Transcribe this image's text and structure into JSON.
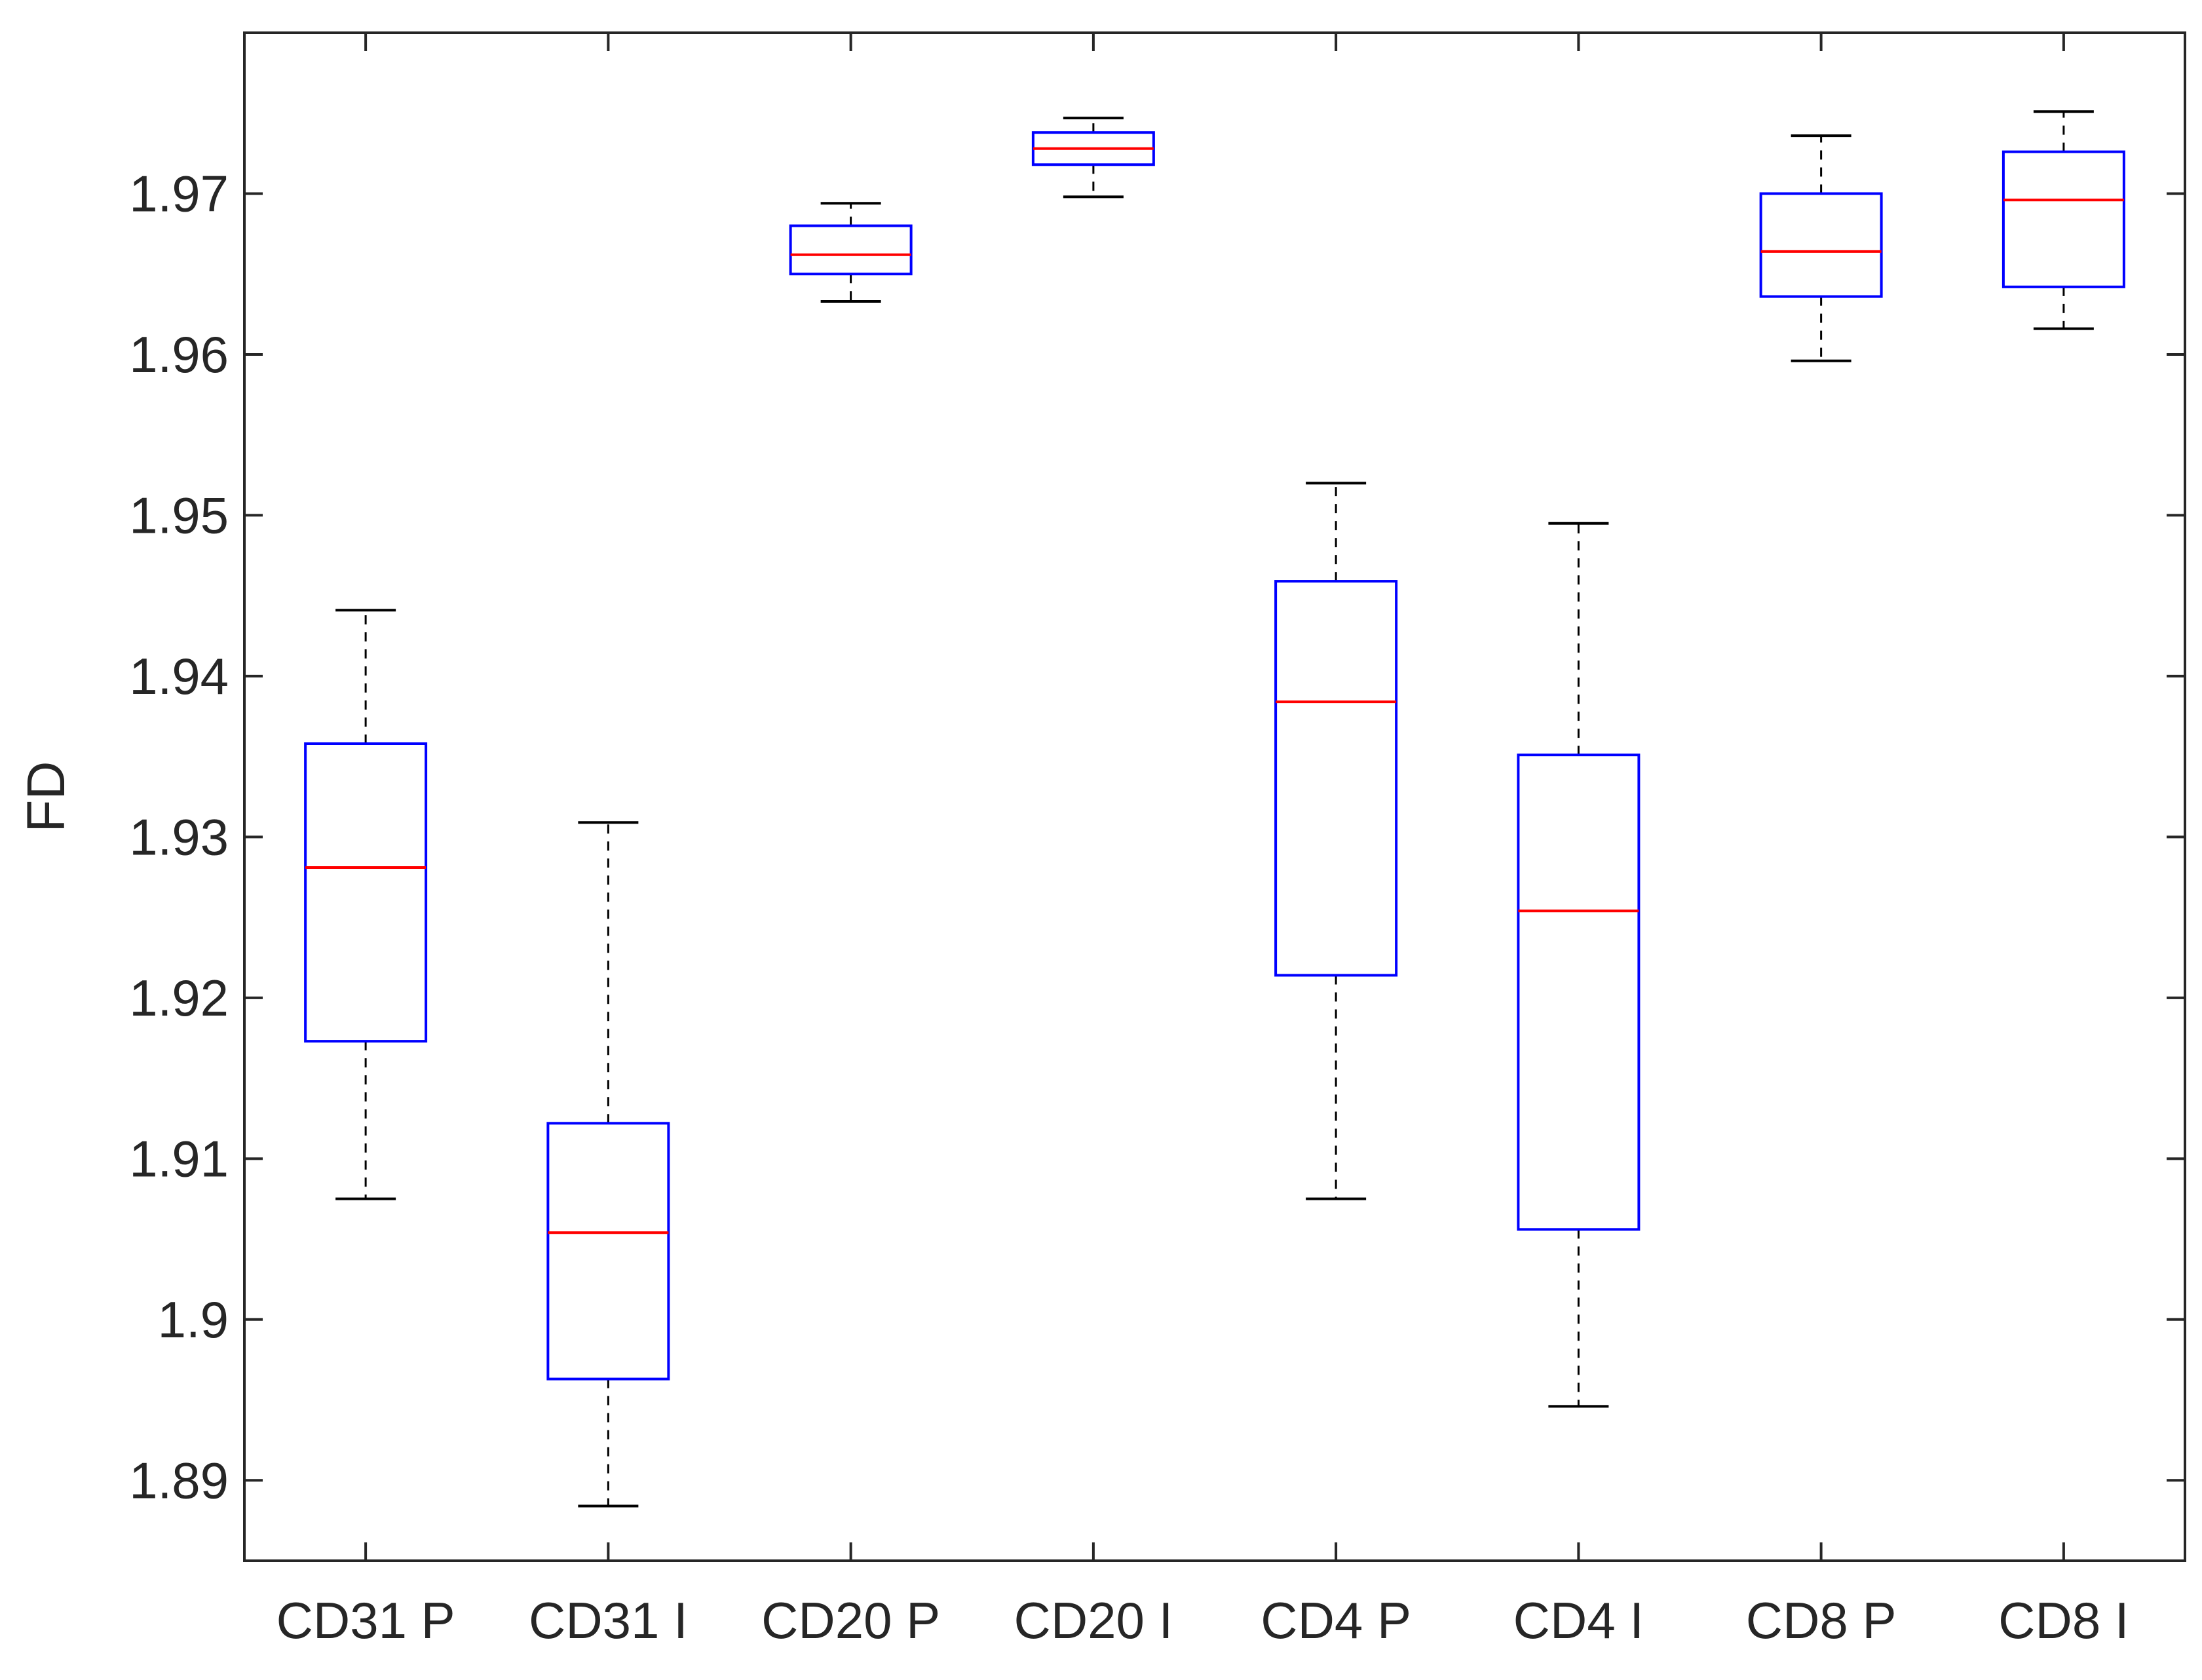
{
  "chart_data": {
    "type": "box",
    "title": "",
    "xlabel": "",
    "ylabel": "FD",
    "ylim": [
      1.885,
      1.98
    ],
    "yticks": [
      "1.89",
      "1.9",
      "1.91",
      "1.92",
      "1.93",
      "1.94",
      "1.95",
      "1.96",
      "1.97"
    ],
    "categories": [
      "CD31 P",
      "CD31 I",
      "CD20 P",
      "CD20 I",
      "CD4 P",
      "CD4 I",
      "CD8 P",
      "CD8 I"
    ],
    "boxes": [
      {
        "min": 1.9075,
        "q1": 1.9173,
        "median": 1.9281,
        "q3": 1.9358,
        "max": 1.9441
      },
      {
        "min": 1.8884,
        "q1": 1.8963,
        "median": 1.9054,
        "q3": 1.9122,
        "max": 1.9309
      },
      {
        "min": 1.9633,
        "q1": 1.965,
        "median": 1.9662,
        "q3": 1.968,
        "max": 1.9694
      },
      {
        "min": 1.9698,
        "q1": 1.9718,
        "median": 1.9728,
        "q3": 1.9738,
        "max": 1.9747
      },
      {
        "min": 1.9075,
        "q1": 1.9214,
        "median": 1.9384,
        "q3": 1.9459,
        "max": 1.952
      },
      {
        "min": 1.8946,
        "q1": 1.9056,
        "median": 1.9254,
        "q3": 1.9351,
        "max": 1.9495
      },
      {
        "min": 1.9596,
        "q1": 1.9636,
        "median": 1.9664,
        "q3": 1.97,
        "max": 1.9736
      },
      {
        "min": 1.9616,
        "q1": 1.9642,
        "median": 1.9696,
        "q3": 1.9726,
        "max": 1.9751
      }
    ],
    "colors": {
      "box": "#0000ff",
      "median": "#ff0000",
      "whisker": "#000000",
      "axis": "#262626"
    }
  }
}
